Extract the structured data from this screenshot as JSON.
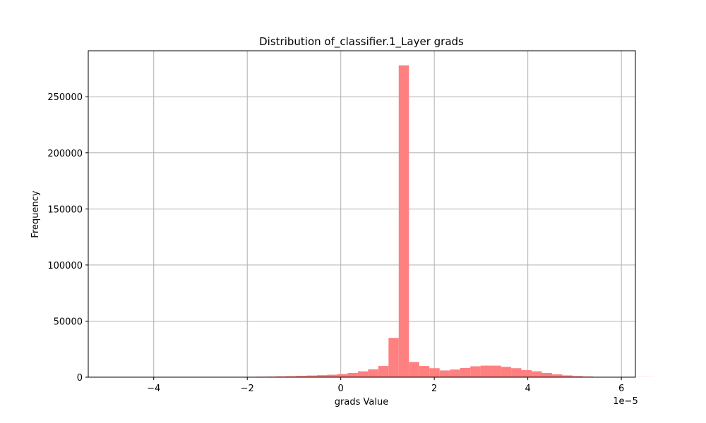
{
  "chart_data": {
    "type": "bar",
    "title": "Distribution of_classifier.1_Layer grads",
    "xlabel": "grads Value",
    "ylabel": "Frequency",
    "x_offset_label": "1e−5",
    "xlim": [
      -5.4,
      6.3
    ],
    "ylim": [
      0,
      291000
    ],
    "grid": true,
    "bar_color": "#ff8080",
    "x_ticks": [
      {
        "value": -4,
        "label": "−4"
      },
      {
        "value": -2,
        "label": "−2"
      },
      {
        "value": 0,
        "label": "0"
      },
      {
        "value": 2,
        "label": "2"
      },
      {
        "value": 4,
        "label": "4"
      },
      {
        "value": 6,
        "label": "6"
      }
    ],
    "y_ticks": [
      {
        "value": 0,
        "label": "0"
      },
      {
        "value": 50000,
        "label": "50000"
      },
      {
        "value": 100000,
        "label": "100000"
      },
      {
        "value": 150000,
        "label": "150000"
      },
      {
        "value": 200000,
        "label": "200000"
      },
      {
        "value": 250000,
        "label": "250000"
      }
    ],
    "bins_start": -5.1,
    "bin_width": 0.2186,
    "values": [
      100,
      100,
      100,
      100,
      100,
      100,
      100,
      100,
      100,
      100,
      100,
      100,
      100,
      200,
      300,
      400,
      500,
      700,
      900,
      1200,
      1500,
      1800,
      2200,
      2800,
      3800,
      5200,
      7000,
      10000,
      35000,
      278000,
      13500,
      10000,
      8000,
      6000,
      6800,
      8200,
      9700,
      10300,
      10300,
      9200,
      8000,
      6300,
      5200,
      3800,
      2500,
      1600,
      1000,
      600,
      300,
      200,
      100,
      100,
      100,
      100
    ]
  }
}
